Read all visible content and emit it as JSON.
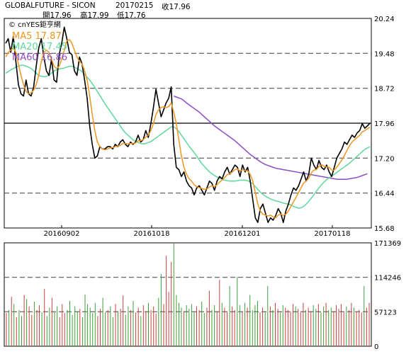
{
  "header": {
    "symbol": "GLOBALFUTURE - SICON",
    "date": "20170215",
    "close": "收17.96",
    "open": "開17.96",
    "high": "高17.99",
    "low": "低17.76"
  },
  "watermark": "© cnYES鉅亨網",
  "colors": {
    "price": "#000000",
    "ma5": "#f0961e",
    "ma20": "#5ed89a",
    "ma60": "#8c4cc6",
    "vol_up": "#c84040",
    "vol_down": "#3e9e3e",
    "dash": "#555555"
  },
  "chart_data": [
    {
      "type": "line",
      "title": "",
      "ylim": [
        15.68,
        20.24
      ],
      "y_ticks": [
        "20.24",
        "19.48",
        "18.72",
        "17.96",
        "17.20",
        "16.44",
        "15.68"
      ],
      "x_ticks": [
        "20160902",
        "20161018",
        "20161201",
        "20170118"
      ],
      "legend": [
        {
          "label": "MA5 17.87",
          "color_key": "ma5"
        },
        {
          "label": "MA20 17.45",
          "color_key": "ma20"
        },
        {
          "label": "MA60 16.86",
          "color_key": "ma60"
        }
      ],
      "reference_value": 17.96,
      "series": [
        {
          "key": "price",
          "values": [
            19.7,
            19.8,
            19.5,
            19.85,
            19.3,
            18.8,
            18.6,
            18.55,
            18.9,
            18.6,
            18.55,
            18.75,
            19.2,
            19.6,
            19.8,
            19.4,
            19.1,
            19.0,
            19.35,
            18.9,
            18.85,
            19.45,
            19.7,
            20.05,
            19.8,
            19.5,
            19.45,
            19.1,
            19.0,
            19.4,
            19.25,
            18.9,
            18.5,
            17.9,
            17.5,
            17.2,
            17.25,
            17.45,
            17.4,
            17.4,
            17.45,
            17.45,
            17.4,
            17.5,
            17.45,
            17.55,
            17.6,
            17.5,
            17.45,
            17.55,
            17.5,
            17.55,
            17.7,
            17.55,
            17.6,
            17.8,
            17.65,
            17.95,
            18.3,
            18.7,
            18.4,
            18.1,
            18.25,
            18.4,
            18.5,
            18.75,
            17.5,
            17.0,
            16.95,
            16.8,
            16.9,
            16.7,
            16.6,
            16.55,
            16.4,
            16.55,
            16.6,
            16.5,
            16.4,
            16.55,
            16.7,
            16.65,
            16.5,
            16.7,
            16.8,
            16.75,
            16.9,
            17.0,
            16.85,
            16.95,
            17.05,
            17.0,
            16.8,
            17.05,
            16.9,
            17.0,
            16.7,
            16.3,
            15.9,
            15.8,
            16.1,
            16.2,
            16.0,
            15.8,
            15.9,
            15.85,
            15.95,
            16.1,
            16.0,
            15.8,
            16.05,
            16.2,
            16.4,
            16.55,
            16.5,
            16.6,
            16.75,
            16.9,
            16.7,
            16.85,
            17.2,
            17.05,
            16.95,
            17.15,
            17.0,
            16.95,
            17.05,
            16.9,
            16.8,
            17.0,
            17.2,
            17.3,
            17.4,
            17.55,
            17.5,
            17.6,
            17.7,
            17.65,
            17.75,
            17.8,
            17.95,
            17.85,
            17.9,
            17.96
          ]
        },
        {
          "key": "ma5",
          "values": [
            19.4,
            19.5,
            19.55,
            19.6,
            19.5,
            19.25,
            19.0,
            18.8,
            18.65,
            18.6,
            18.62,
            18.68,
            18.8,
            19.0,
            19.3,
            19.5,
            19.55,
            19.5,
            19.35,
            19.2,
            19.15,
            19.2,
            19.35,
            19.55,
            19.75,
            19.78,
            19.7,
            19.55,
            19.4,
            19.3,
            19.25,
            19.1,
            18.9,
            18.55,
            18.15,
            17.8,
            17.55,
            17.45,
            17.4,
            17.38,
            17.4,
            17.42,
            17.43,
            17.45,
            17.46,
            17.48,
            17.52,
            17.52,
            17.51,
            17.52,
            17.52,
            17.53,
            17.58,
            17.58,
            17.6,
            17.66,
            17.7,
            17.8,
            17.95,
            18.15,
            18.25,
            18.3,
            18.32,
            18.3,
            18.32,
            18.4,
            18.2,
            17.95,
            17.6,
            17.25,
            17.0,
            16.85,
            16.75,
            16.7,
            16.62,
            16.58,
            16.56,
            16.54,
            16.52,
            16.53,
            16.57,
            16.6,
            16.58,
            16.62,
            16.68,
            16.72,
            16.78,
            16.84,
            16.86,
            16.9,
            16.95,
            16.96,
            16.92,
            16.95,
            16.93,
            16.92,
            16.85,
            16.7,
            16.45,
            16.2,
            16.05,
            15.98,
            15.96,
            15.94,
            15.96,
            15.92,
            15.9,
            15.96,
            15.98,
            15.95,
            15.98,
            16.05,
            16.15,
            16.25,
            16.35,
            16.45,
            16.56,
            16.66,
            16.7,
            16.76,
            16.88,
            16.94,
            16.95,
            17.02,
            17.06,
            17.02,
            17.01,
            17.0,
            16.94,
            16.94,
            17.0,
            17.08,
            17.16,
            17.26,
            17.37,
            17.47,
            17.55,
            17.6,
            17.65,
            17.7,
            17.77,
            17.8,
            17.84,
            17.87
          ]
        },
        {
          "key": "ma20",
          "values": [
            19.05,
            19.08,
            19.12,
            19.15,
            19.18,
            19.2,
            19.22,
            19.22,
            19.2,
            19.18,
            19.15,
            19.1,
            19.05,
            19.0,
            18.98,
            18.97,
            18.98,
            19.0,
            19.05,
            19.1,
            19.12,
            19.14,
            19.15,
            19.16,
            19.18,
            19.2,
            19.2,
            19.18,
            19.15,
            19.12,
            19.08,
            19.02,
            18.96,
            18.9,
            18.82,
            18.74,
            18.65,
            18.56,
            18.47,
            18.38,
            18.3,
            18.22,
            18.14,
            18.06,
            17.98,
            17.9,
            17.82,
            17.75,
            17.7,
            17.65,
            17.6,
            17.57,
            17.54,
            17.52,
            17.51,
            17.52,
            17.54,
            17.56,
            17.6,
            17.64,
            17.68,
            17.72,
            17.76,
            17.8,
            17.84,
            17.88,
            17.88,
            17.84,
            17.78,
            17.7,
            17.62,
            17.54,
            17.46,
            17.39,
            17.32,
            17.24,
            17.16,
            17.08,
            17.02,
            16.96,
            16.9,
            16.86,
            16.82,
            16.79,
            16.76,
            16.74,
            16.72,
            16.71,
            16.7,
            16.7,
            16.7,
            16.71,
            16.72,
            16.72,
            16.72,
            16.71,
            16.68,
            16.64,
            16.58,
            16.52,
            16.46,
            16.41,
            16.37,
            16.34,
            16.31,
            16.29,
            16.27,
            16.26,
            16.24,
            16.22,
            16.21,
            16.2,
            16.18,
            16.15,
            16.13,
            16.11,
            16.12,
            16.15,
            16.2,
            16.26,
            16.33,
            16.4,
            16.48,
            16.55,
            16.62,
            16.68,
            16.73,
            16.77,
            16.81,
            16.85,
            16.89,
            16.93,
            16.97,
            17.01,
            17.05,
            17.09,
            17.14,
            17.19,
            17.24,
            17.29,
            17.34,
            17.39,
            17.42,
            17.45
          ]
        },
        {
          "key": "ma60",
          "start_index": 66,
          "values": [
            18.55,
            18.53,
            18.51,
            18.49,
            18.45,
            18.4,
            18.36,
            18.32,
            18.28,
            18.24,
            18.2,
            18.15,
            18.1,
            18.05,
            18.0,
            17.95,
            17.9,
            17.86,
            17.82,
            17.78,
            17.74,
            17.7,
            17.66,
            17.62,
            17.58,
            17.53,
            17.48,
            17.43,
            17.38,
            17.33,
            17.28,
            17.24,
            17.2,
            17.16,
            17.12,
            17.09,
            17.06,
            17.04,
            17.02,
            17.0,
            16.98,
            16.97,
            16.96,
            16.95,
            16.94,
            16.93,
            16.92,
            16.91,
            16.9,
            16.89,
            16.88,
            16.87,
            16.86,
            16.85,
            16.84,
            16.83,
            16.82,
            16.81,
            16.8,
            16.79,
            16.78,
            16.77,
            16.76,
            16.75,
            16.74,
            16.74,
            16.74,
            16.74,
            16.74,
            16.75,
            16.76,
            16.77,
            16.78,
            16.8,
            16.82,
            16.84,
            16.86
          ]
        }
      ]
    },
    {
      "type": "bar",
      "title": "",
      "ylim": [
        0,
        171369
      ],
      "y_ticks": [
        "171369",
        "114246",
        "57123",
        "0"
      ],
      "values": [
        55000,
        60000,
        82000,
        70000,
        48000,
        60000,
        50000,
        85000,
        78000,
        66000,
        52000,
        74000,
        60000,
        68000,
        56000,
        95000,
        50000,
        64000,
        80000,
        58000,
        66000,
        48000,
        70000,
        55000,
        60000,
        75000,
        52000,
        66000,
        58000,
        62000,
        48000,
        86000,
        70000,
        64000,
        55000,
        72000,
        50000,
        62000,
        80000,
        56000,
        60000,
        66000,
        48000,
        70000,
        58000,
        62000,
        84000,
        52000,
        66000,
        60000,
        75000,
        56000,
        64000,
        50000,
        68000,
        58000,
        72000,
        60000,
        66000,
        54000,
        80000,
        120000,
        70000,
        150000,
        90000,
        140000,
        178000,
        85000,
        72000,
        64000,
        58000,
        68000,
        62000,
        70000,
        56000,
        66000,
        60000,
        74000,
        55000,
        64000,
        92000,
        60000,
        68000,
        58000,
        110000,
        72000,
        64000,
        56000,
        100000,
        66000,
        60000,
        115000,
        68000,
        58000,
        72000,
        64000,
        85000,
        60000,
        68000,
        75000,
        56000,
        64000,
        58000,
        100000,
        66000,
        60000,
        72000,
        62000,
        56000,
        68000,
        64000,
        60000,
        58000,
        70000,
        66000,
        62000,
        56000,
        72000,
        60000,
        64000,
        58000,
        68000,
        62000,
        70000,
        56000,
        66000,
        72000,
        60000,
        64000,
        58000,
        68000,
        62000,
        70000,
        56000,
        66000,
        60000,
        72000,
        64000,
        58000,
        60000,
        56000,
        100000,
        64000,
        72000
      ],
      "directions": [
        "u",
        "d",
        "u",
        "d",
        "u",
        "d",
        "d",
        "u",
        "d",
        "u",
        "u",
        "d",
        "u",
        "u",
        "d",
        "u",
        "d",
        "d",
        "u",
        "d",
        "d",
        "u",
        "u",
        "u",
        "d",
        "d",
        "d",
        "d",
        "d",
        "u",
        "d",
        "d",
        "d",
        "d",
        "d",
        "d",
        "u",
        "u",
        "d",
        "d",
        "u",
        "d",
        "d",
        "u",
        "d",
        "u",
        "u",
        "d",
        "d",
        "u",
        "d",
        "u",
        "u",
        "d",
        "u",
        "u",
        "d",
        "u",
        "u",
        "u",
        "d",
        "d",
        "u",
        "u",
        "u",
        "u",
        "d",
        "d",
        "d",
        "d",
        "u",
        "d",
        "d",
        "d",
        "d",
        "u",
        "u",
        "d",
        "d",
        "u",
        "u",
        "d",
        "d",
        "u",
        "u",
        "d",
        "u",
        "u",
        "d",
        "u",
        "u",
        "d",
        "d",
        "u",
        "d",
        "u",
        "d",
        "d",
        "d",
        "d",
        "u",
        "u",
        "d",
        "d",
        "u",
        "d",
        "u",
        "u",
        "d",
        "d",
        "u",
        "u",
        "u",
        "u",
        "d",
        "u",
        "u",
        "u",
        "d",
        "u",
        "u",
        "d",
        "d",
        "u",
        "d",
        "d",
        "u",
        "d",
        "d",
        "u",
        "u",
        "u",
        "u",
        "u",
        "d",
        "u",
        "u",
        "d",
        "u",
        "u",
        "u",
        "d",
        "u",
        "u"
      ]
    }
  ]
}
